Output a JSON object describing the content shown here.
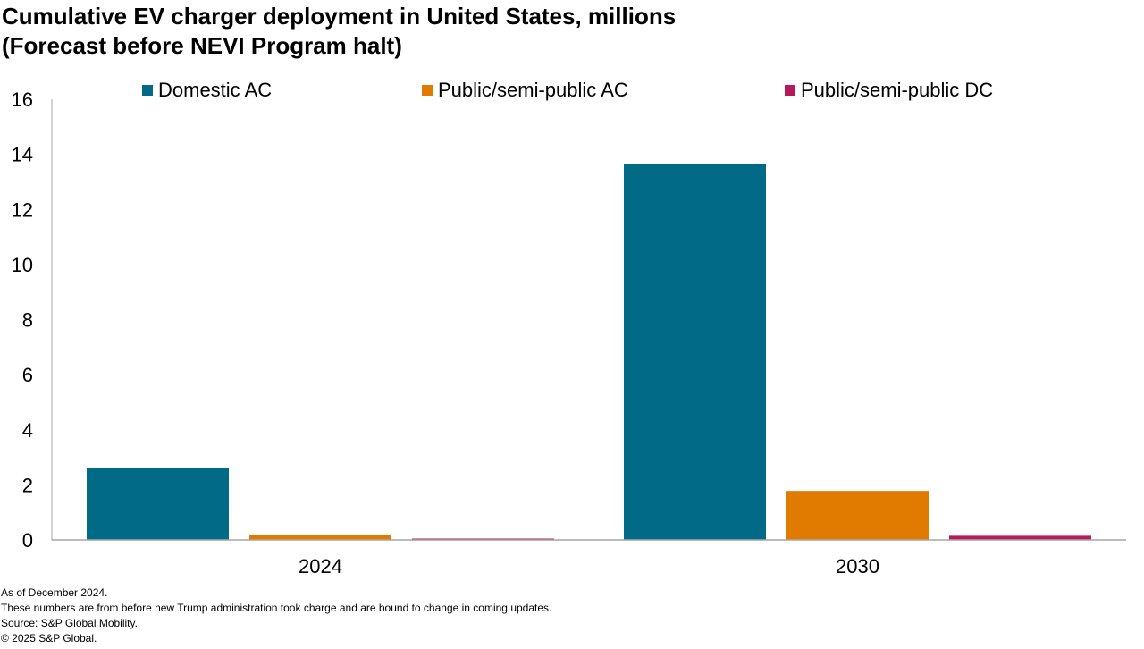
{
  "title": {
    "line1": "Cumulative EV charger deployment in United States, millions",
    "line2": "(Forecast before NEVI Program halt)"
  },
  "colors": {
    "domestic_ac": "#006A87",
    "public_ac": "#E07B00",
    "public_dc": "#B8195A",
    "axis": "#A6A6A6"
  },
  "chart_data": {
    "type": "bar",
    "title": "Cumulative EV charger deployment in United States, millions",
    "subtitle": "(Forecast before NEVI Program halt)",
    "xlabel": "",
    "ylabel": "",
    "categories": [
      "2024",
      "2030"
    ],
    "ylim": [
      0,
      16
    ],
    "yticks": [
      "0",
      "2",
      "4",
      "6",
      "8",
      "10",
      "12",
      "14",
      "16"
    ],
    "grid": false,
    "legend_position": "top",
    "series": [
      {
        "name": "Domestic AC",
        "values": [
          2.62,
          13.65
        ],
        "color": "#006A87"
      },
      {
        "name": "Public/semi-public AC",
        "values": [
          0.19,
          1.78
        ],
        "color": "#E07B00"
      },
      {
        "name": "Public/semi-public DC",
        "values": [
          0.04,
          0.15
        ],
        "color": "#B8195A"
      }
    ]
  },
  "footnotes": [
    "As of December 2024.",
    "These numbers are from before new Trump administration took charge and are bound to change in coming updates.",
    "Source: S&P Global Mobility.",
    "© 2025 S&P Global."
  ]
}
